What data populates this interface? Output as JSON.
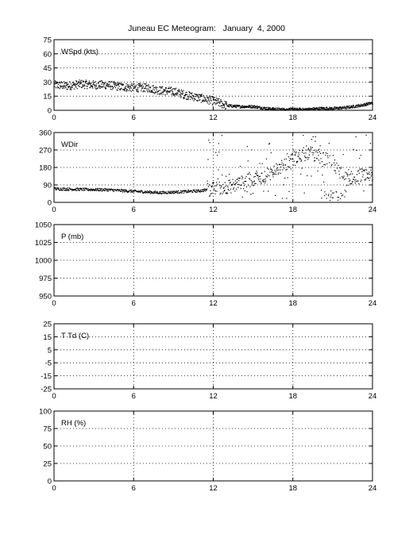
{
  "title": "Juneau EC Meteogram:   January  4, 2000",
  "chart_data": [
    {
      "type": "scatter",
      "label": "WSpd (kts)",
      "xlim": [
        0,
        24
      ],
      "ylim": [
        0,
        75
      ],
      "xticks": [
        0,
        6,
        12,
        18,
        24
      ],
      "yticks": [
        0,
        15,
        30,
        45,
        60,
        75
      ],
      "grid": true,
      "trend": [
        [
          0,
          27
        ],
        [
          1,
          26
        ],
        [
          2,
          28
        ],
        [
          3,
          27
        ],
        [
          4,
          27
        ],
        [
          5,
          25
        ],
        [
          6,
          24
        ],
        [
          7,
          24
        ],
        [
          8,
          21
        ],
        [
          9,
          20
        ],
        [
          10,
          16
        ],
        [
          11,
          13
        ],
        [
          12,
          10
        ],
        [
          13,
          5
        ],
        [
          14,
          4
        ],
        [
          15,
          4
        ],
        [
          16,
          2
        ],
        [
          17,
          1
        ],
        [
          18,
          1
        ],
        [
          19,
          1
        ],
        [
          20,
          2
        ],
        [
          21,
          2
        ],
        [
          22,
          3
        ],
        [
          23,
          5
        ],
        [
          24,
          8
        ]
      ]
    },
    {
      "type": "scatter",
      "label": "WDir",
      "xlim": [
        0,
        24
      ],
      "ylim": [
        0,
        360
      ],
      "xticks": [
        0,
        6,
        12,
        18,
        24
      ],
      "yticks": [
        0,
        90,
        180,
        270,
        360
      ],
      "grid": true,
      "trend": [
        [
          0,
          70
        ],
        [
          2,
          67
        ],
        [
          4,
          65
        ],
        [
          6,
          57
        ],
        [
          8,
          50
        ],
        [
          10,
          56
        ],
        [
          11,
          60
        ],
        [
          12,
          70
        ],
        [
          13,
          80
        ],
        [
          14,
          100
        ],
        [
          15,
          120
        ],
        [
          16,
          140
        ],
        [
          17,
          180
        ],
        [
          18,
          220
        ],
        [
          19,
          260
        ],
        [
          20,
          240
        ],
        [
          21,
          200
        ],
        [
          22,
          120
        ],
        [
          23,
          140
        ],
        [
          24,
          145
        ]
      ]
    },
    {
      "type": "scatter",
      "label": "P (mb)",
      "xlim": [
        0,
        24
      ],
      "ylim": [
        950,
        1050
      ],
      "xticks": [
        0,
        6,
        12,
        18,
        24
      ],
      "yticks": [
        950,
        975,
        1000,
        1025,
        1050
      ],
      "grid": true,
      "trend": []
    },
    {
      "type": "scatter",
      "label": "T Td (C)",
      "xlim": [
        0,
        24
      ],
      "ylim": [
        -25,
        25
      ],
      "xticks": [
        0,
        6,
        12,
        18,
        24
      ],
      "yticks": [
        -25,
        -15,
        -5,
        5,
        15,
        25
      ],
      "grid": true,
      "trend": []
    },
    {
      "type": "scatter",
      "label": "RH (%)",
      "xlim": [
        0,
        24
      ],
      "ylim": [
        0,
        100
      ],
      "xticks": [
        0,
        6,
        12,
        18,
        24
      ],
      "yticks": [
        0,
        25,
        50,
        75,
        100
      ],
      "grid": true,
      "trend": []
    }
  ]
}
